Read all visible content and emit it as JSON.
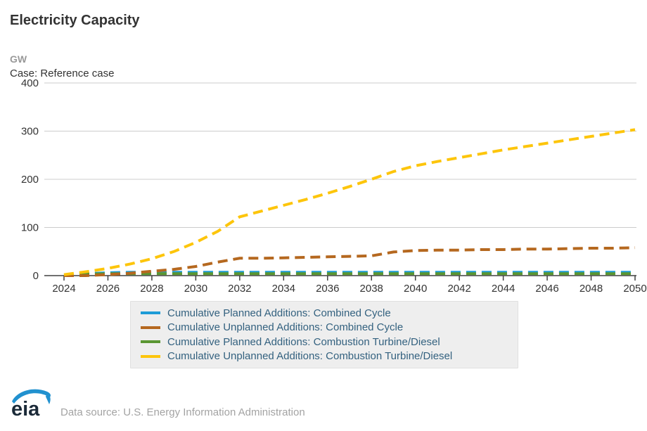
{
  "header": {
    "title": "Electricity Capacity",
    "unit_label": "GW",
    "case_label": "Case: Reference case"
  },
  "chart_data": {
    "type": "line",
    "title": "Electricity Capacity",
    "subtitle": "Case: Reference case",
    "ylabel": "GW",
    "xlabel": "",
    "grid": true,
    "legend_position": "bottom",
    "ylim": [
      0,
      400
    ],
    "yticks": [
      0,
      100,
      200,
      300,
      400
    ],
    "xticks": [
      2024,
      2026,
      2028,
      2030,
      2032,
      2034,
      2036,
      2038,
      2040,
      2042,
      2044,
      2046,
      2048,
      2050
    ],
    "x": [
      2024,
      2025,
      2026,
      2027,
      2028,
      2029,
      2030,
      2031,
      2032,
      2033,
      2034,
      2035,
      2036,
      2037,
      2038,
      2039,
      2040,
      2041,
      2042,
      2043,
      2044,
      2045,
      2046,
      2047,
      2048,
      2049,
      2050
    ],
    "series": [
      {
        "name": "Cumulative Planned Additions: Combined Cycle",
        "color": "#1e9cd7",
        "line_style": "dashed",
        "values": [
          1,
          4,
          6,
          7,
          7,
          7,
          7,
          7,
          7,
          7,
          7,
          7,
          7,
          7,
          7,
          7,
          7,
          7,
          7,
          7,
          7,
          7,
          7,
          7,
          7,
          7,
          7
        ]
      },
      {
        "name": "Cumulative Planned Additions: Combustion Turbine/Diesel",
        "color": "#5a9632",
        "line_style": "dashed",
        "values": [
          1,
          3,
          4,
          4,
          4,
          4,
          4,
          4,
          4,
          4,
          4,
          4,
          4,
          4,
          4,
          4,
          4,
          4,
          4,
          4,
          4,
          4,
          4,
          4,
          4,
          4,
          4
        ]
      },
      {
        "name": "Cumulative Unplanned Additions: Combined Cycle",
        "color": "#b5681f",
        "line_style": "dashed",
        "values": [
          0,
          0,
          2,
          5,
          9,
          13,
          19,
          28,
          36,
          36,
          37,
          38,
          39,
          40,
          41,
          49,
          52,
          53,
          53,
          54,
          54,
          55,
          55,
          56,
          57,
          57,
          58
        ]
      },
      {
        "name": "Cumulative Unplanned Additions: Combustion Turbine/Diesel",
        "color": "#fdc50b",
        "line_style": "dashed",
        "values": [
          2,
          8,
          15,
          24,
          35,
          50,
          69,
          92,
          122,
          134,
          146,
          158,
          171,
          185,
          200,
          216,
          228,
          237,
          245,
          253,
          261,
          268,
          275,
          282,
          289,
          296,
          303
        ]
      }
    ],
    "legend_order": [
      0,
      2,
      1,
      3
    ]
  },
  "footer": {
    "logo_text": "eia",
    "source_text": "Data source: U.S. Energy Information Administration"
  },
  "colors": {
    "grid_line": "#cccccc",
    "axis_line": "#404040",
    "tick_label": "#333333",
    "legend_text": "#33617f",
    "legend_bg": "#eeeeee",
    "logo_swoosh": "#2191cf",
    "logo_text": "#1b2a38"
  }
}
